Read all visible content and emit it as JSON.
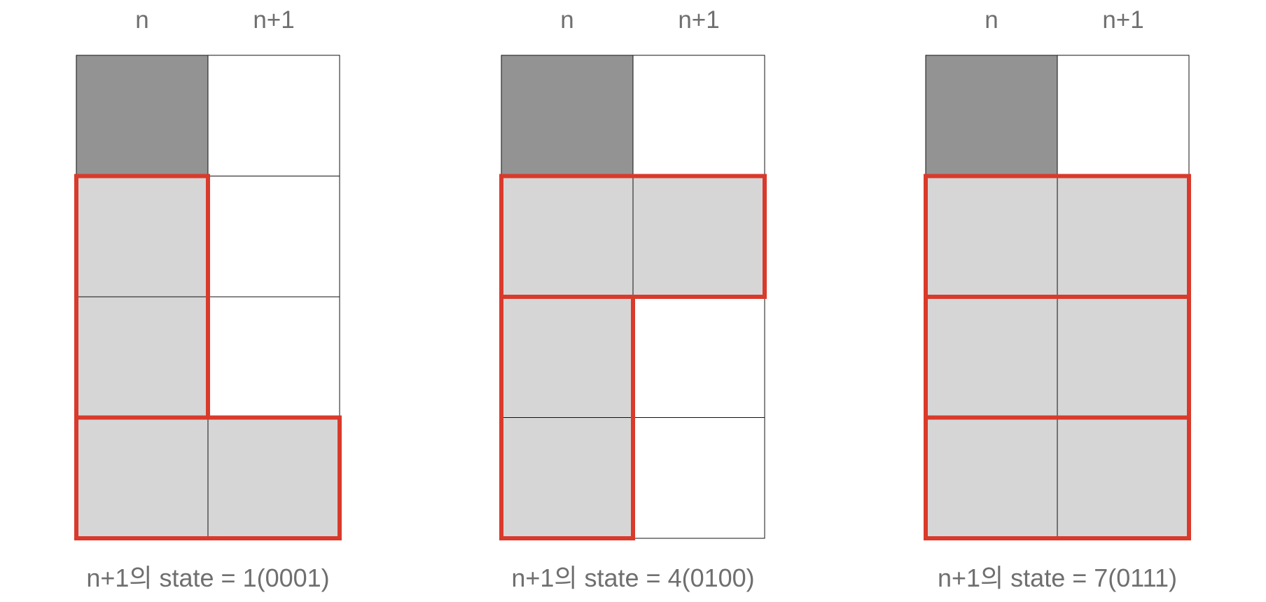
{
  "colors": {
    "filled_dark": "#939393",
    "filled_light": "#d6d6d6",
    "empty": "#ffffff",
    "grid_line": "#111111",
    "highlight": "#d93a2b",
    "text": "#6f6f6f"
  },
  "panels": [
    {
      "columns": [
        "n",
        "n+1"
      ],
      "caption": "n+1의 state = 1(0001)",
      "grid": [
        [
          "dark",
          "empty"
        ],
        [
          "light",
          "empty"
        ],
        [
          "light",
          "empty"
        ],
        [
          "light",
          "light"
        ]
      ],
      "tiles": [
        {
          "row": 1,
          "col": 0,
          "rows": 2,
          "cols": 1
        },
        {
          "row": 3,
          "col": 0,
          "rows": 1,
          "cols": 2
        }
      ]
    },
    {
      "columns": [
        "n",
        "n+1"
      ],
      "caption": "n+1의 state = 4(0100)",
      "grid": [
        [
          "dark",
          "empty"
        ],
        [
          "light",
          "light"
        ],
        [
          "light",
          "empty"
        ],
        [
          "light",
          "empty"
        ]
      ],
      "tiles": [
        {
          "row": 1,
          "col": 0,
          "rows": 1,
          "cols": 2
        },
        {
          "row": 2,
          "col": 0,
          "rows": 2,
          "cols": 1
        }
      ]
    },
    {
      "columns": [
        "n",
        "n+1"
      ],
      "caption": "n+1의 state = 7(0111)",
      "grid": [
        [
          "dark",
          "empty"
        ],
        [
          "light",
          "light"
        ],
        [
          "light",
          "light"
        ],
        [
          "light",
          "light"
        ]
      ],
      "tiles": [
        {
          "row": 1,
          "col": 0,
          "rows": 1,
          "cols": 2
        },
        {
          "row": 2,
          "col": 0,
          "rows": 1,
          "cols": 2
        },
        {
          "row": 3,
          "col": 0,
          "rows": 1,
          "cols": 2
        }
      ]
    }
  ]
}
